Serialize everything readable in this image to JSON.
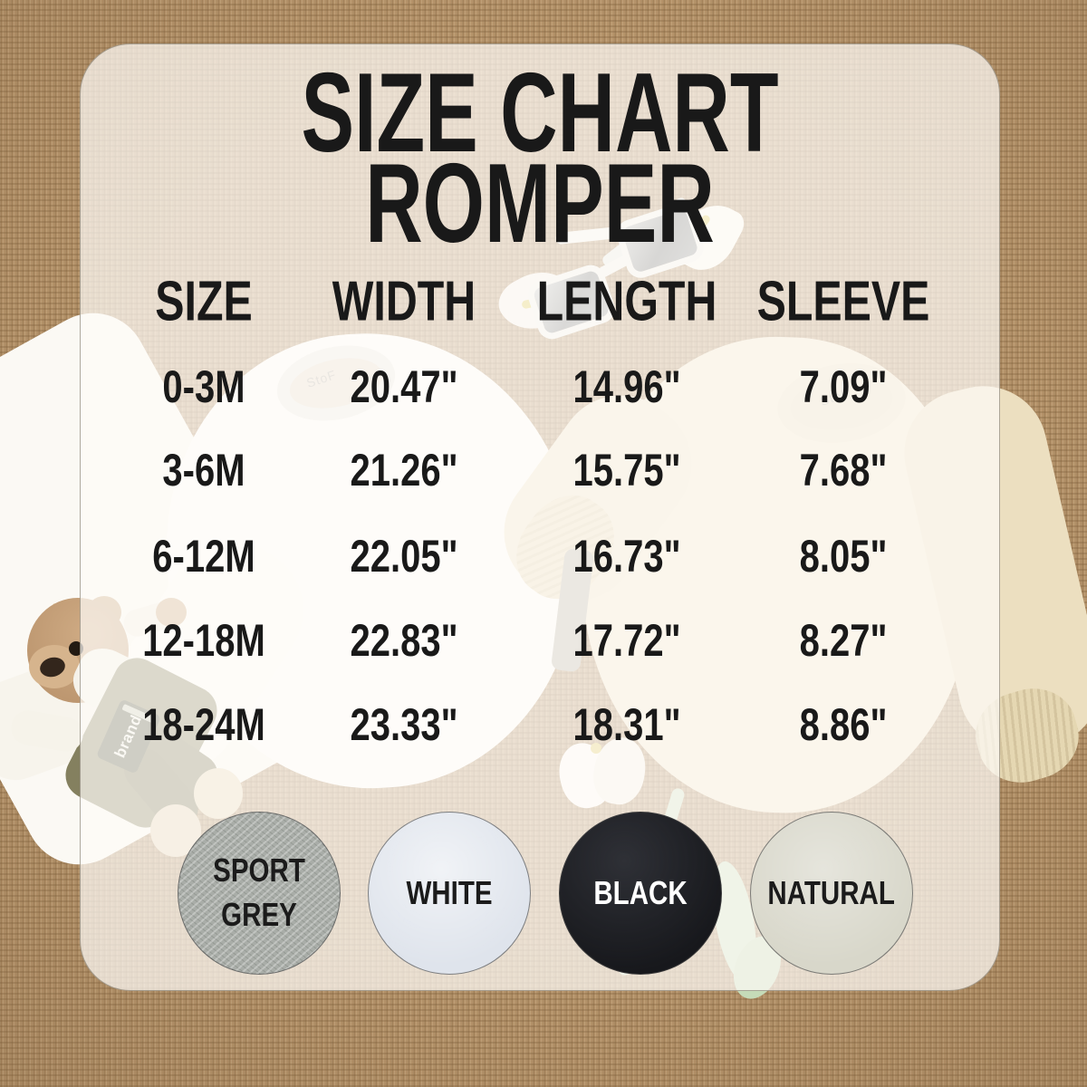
{
  "title": {
    "line1": "SIZE CHART",
    "line2": "ROMPER"
  },
  "table": {
    "headers": [
      "SIZE",
      "WIDTH",
      "LENGTH",
      "SLEEVE"
    ],
    "rows": [
      [
        "0-3M",
        "20.47\"",
        "14.96\"",
        "7.09\""
      ],
      [
        "3-6M",
        "21.26\"",
        "15.75\"",
        "7.68\""
      ],
      [
        "6-12M",
        "22.05\"",
        "16.73\"",
        "8.05\""
      ],
      [
        "12-18M",
        "22.83\"",
        "17.72\"",
        "8.27\""
      ],
      [
        "18-24M",
        "23.33\"",
        "18.31\"",
        "8.86\""
      ]
    ]
  },
  "swatches": [
    {
      "label": "SPORT\nGREY",
      "color": "#a9ada8",
      "text_color": "#1b1b1b"
    },
    {
      "label": "WHITE",
      "color": "#dfe4ec",
      "text_color": "#1b1b1b"
    },
    {
      "label": "BLACK",
      "color": "#17181c",
      "text_color": "#ffffff"
    },
    {
      "label": "NATURAL",
      "color": "#d8d7ca",
      "text_color": "#1b1b1b"
    }
  ],
  "photo": {
    "left_romper_neck_label": "StoF",
    "right_romper_neck_label": "StoF",
    "bear_patch_text": "brand"
  },
  "colors": {
    "burlap": "#b6946b",
    "panel_overlay": "rgba(253,251,247,0.72)",
    "text": "#191919",
    "white_romper": "#fefefd",
    "natural_romper": "#f2e8cf"
  }
}
